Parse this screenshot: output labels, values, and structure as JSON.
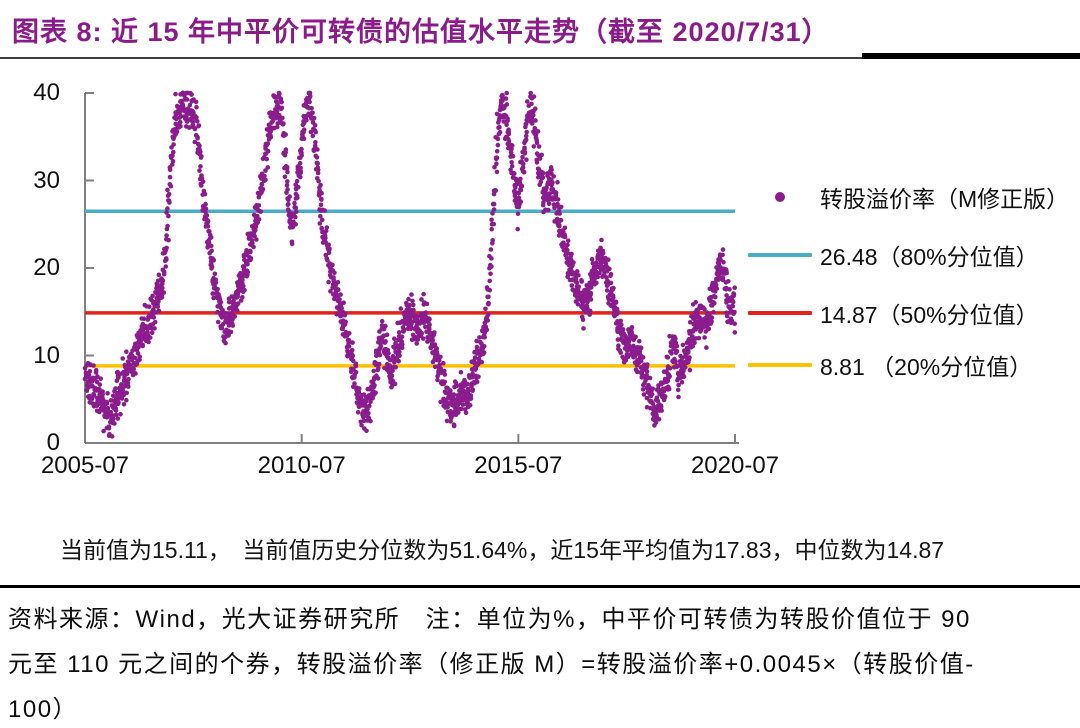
{
  "title": "图表 8: 近 15 年中平价可转债的估值水平走势（截至 2020/7/31）",
  "colors": {
    "title": "#8B1A8B",
    "scatter": "#8B1C8E",
    "p80_line": "#4BACC6",
    "p50_line": "#E2231A",
    "p20_line": "#FFC000",
    "axis": "#808080"
  },
  "legend": {
    "items": [
      {
        "marker": "dot",
        "color": "#8B1C8E",
        "label": "转股溢价率（M修正版）"
      },
      {
        "marker": "line",
        "color": "#4BACC6",
        "label": "26.48（80%分位值）"
      },
      {
        "marker": "line",
        "color": "#E2231A",
        "label": "14.87（50%分位值）"
      },
      {
        "marker": "line",
        "color": "#FFC000",
        "label": "8.81 （20%分位值）"
      }
    ]
  },
  "stats_line": "当前值为15.11，　当前值历史分位数为51.64%，近15年平均值为17.83，中位数为14.87",
  "footer": {
    "lines": [
      "资料来源：Wind，光大证券研究所　注：单位为%，中平价可转债为转股价值位于 90",
      "元至 110 元之间的个券，转股溢价率（修正版 M）=转股溢价率+0.0045×（转股价值-",
      "100）"
    ]
  },
  "chart_data": {
    "type": "scatter",
    "title": "近15年中平价可转债的估值水平走势（截至2020/7/31）",
    "series_name": "转股溢价率（M修正版）",
    "unit": "%",
    "x_axis": {
      "range": [
        2005.5,
        2020.5
      ],
      "tick_labels": [
        "2005-07",
        "2010-07",
        "2015-07",
        "2020-07"
      ],
      "tick_values": [
        2005.5,
        2010.5,
        2015.5,
        2020.5
      ]
    },
    "y_axis": {
      "range": [
        0,
        40
      ],
      "ticks": [
        0,
        10,
        20,
        30,
        40
      ]
    },
    "grid": false,
    "legend_position": "right",
    "reference_lines": [
      {
        "value": 26.48,
        "label": "26.48（80%分位值）",
        "percentile": "80%",
        "color": "#4BACC6"
      },
      {
        "value": 14.87,
        "label": "14.87（50%分位值）",
        "percentile": "50%",
        "color": "#E2231A"
      },
      {
        "value": 8.81,
        "label": "8.81 （20%分位值）",
        "percentile": "20%",
        "color": "#FFC000"
      }
    ],
    "stats": {
      "current": 15.11,
      "current_percentile": "51.64%",
      "mean_15y": 17.83,
      "median": 14.87
    },
    "scatter_color": "#8B1C8E",
    "dots_per_year": 185,
    "jitter_sigma": 1.15,
    "t_jitter": 0.05,
    "points_anchor_path": [
      [
        2005.5,
        7.5
      ],
      [
        2005.62,
        6.8
      ],
      [
        2005.75,
        5.8
      ],
      [
        2005.88,
        4.8
      ],
      [
        2006.0,
        3.8
      ],
      [
        2006.1,
        3.2
      ],
      [
        2006.22,
        5.0
      ],
      [
        2006.35,
        6.5
      ],
      [
        2006.5,
        8.0
      ],
      [
        2006.65,
        10.0
      ],
      [
        2006.8,
        12.0
      ],
      [
        2006.95,
        13.5
      ],
      [
        2007.08,
        15.0
      ],
      [
        2007.18,
        16.5
      ],
      [
        2007.28,
        18.0
      ],
      [
        2007.38,
        24.0
      ],
      [
        2007.5,
        33.0
      ],
      [
        2007.62,
        37.5
      ],
      [
        2007.75,
        39.0
      ],
      [
        2007.9,
        38.0
      ],
      [
        2008.02,
        37.5
      ],
      [
        2008.12,
        33.5
      ],
      [
        2008.25,
        28.0
      ],
      [
        2008.38,
        22.5
      ],
      [
        2008.5,
        18.0
      ],
      [
        2008.62,
        15.0
      ],
      [
        2008.75,
        13.0
      ],
      [
        2008.88,
        14.5
      ],
      [
        2009.0,
        16.5
      ],
      [
        2009.12,
        18.5
      ],
      [
        2009.25,
        21.0
      ],
      [
        2009.38,
        24.0
      ],
      [
        2009.5,
        27.0
      ],
      [
        2009.62,
        31.0
      ],
      [
        2009.75,
        35.0
      ],
      [
        2009.88,
        38.0
      ],
      [
        2010.0,
        39.0
      ],
      [
        2010.1,
        34.0
      ],
      [
        2010.2,
        27.0
      ],
      [
        2010.3,
        24.5
      ],
      [
        2010.42,
        30.0
      ],
      [
        2010.55,
        36.5
      ],
      [
        2010.68,
        39.0
      ],
      [
        2010.8,
        35.0
      ],
      [
        2010.9,
        29.0
      ],
      [
        2011.0,
        24.5
      ],
      [
        2011.1,
        21.5
      ],
      [
        2011.22,
        18.5
      ],
      [
        2011.35,
        16.5
      ],
      [
        2011.48,
        13.5
      ],
      [
        2011.62,
        10.0
      ],
      [
        2011.75,
        6.5
      ],
      [
        2011.88,
        4.0
      ],
      [
        2011.98,
        3.0
      ],
      [
        2012.1,
        5.5
      ],
      [
        2012.22,
        9.0
      ],
      [
        2012.35,
        13.0
      ],
      [
        2012.48,
        9.5
      ],
      [
        2012.58,
        7.5
      ],
      [
        2012.7,
        10.5
      ],
      [
        2012.82,
        13.0
      ],
      [
        2012.95,
        15.0
      ],
      [
        2013.08,
        14.0
      ],
      [
        2013.2,
        12.5
      ],
      [
        2013.32,
        15.0
      ],
      [
        2013.45,
        12.5
      ],
      [
        2013.58,
        10.0
      ],
      [
        2013.7,
        8.0
      ],
      [
        2013.82,
        5.5
      ],
      [
        2013.95,
        3.5
      ],
      [
        2014.08,
        5.0
      ],
      [
        2014.2,
        6.0
      ],
      [
        2014.32,
        5.0
      ],
      [
        2014.45,
        7.5
      ],
      [
        2014.58,
        9.5
      ],
      [
        2014.7,
        11.5
      ],
      [
        2014.82,
        17.0
      ],
      [
        2014.92,
        26.0
      ],
      [
        2015.02,
        35.0
      ],
      [
        2015.12,
        39.0
      ],
      [
        2015.25,
        36.5
      ],
      [
        2015.38,
        31.0
      ],
      [
        2015.5,
        27.5
      ],
      [
        2015.62,
        33.0
      ],
      [
        2015.75,
        38.0
      ],
      [
        2015.88,
        36.5
      ],
      [
        2016.0,
        31.0
      ],
      [
        2016.12,
        27.5
      ],
      [
        2016.25,
        30.0
      ],
      [
        2016.38,
        27.0
      ],
      [
        2016.5,
        24.0
      ],
      [
        2016.62,
        21.5
      ],
      [
        2016.75,
        19.5
      ],
      [
        2016.88,
        17.0
      ],
      [
        2017.0,
        15.5
      ],
      [
        2017.12,
        17.0
      ],
      [
        2017.25,
        19.0
      ],
      [
        2017.38,
        21.0
      ],
      [
        2017.5,
        20.5
      ],
      [
        2017.62,
        18.0
      ],
      [
        2017.75,
        14.5
      ],
      [
        2017.88,
        12.0
      ],
      [
        2018.0,
        10.5
      ],
      [
        2018.12,
        12.0
      ],
      [
        2018.25,
        10.0
      ],
      [
        2018.38,
        8.0
      ],
      [
        2018.5,
        6.5
      ],
      [
        2018.62,
        3.8
      ],
      [
        2018.75,
        4.5
      ],
      [
        2018.88,
        6.5
      ],
      [
        2019.0,
        9.5
      ],
      [
        2019.1,
        11.5
      ],
      [
        2019.22,
        7.5
      ],
      [
        2019.35,
        9.5
      ],
      [
        2019.48,
        12.0
      ],
      [
        2019.6,
        14.0
      ],
      [
        2019.72,
        14.5
      ],
      [
        2019.85,
        13.5
      ],
      [
        2019.95,
        15.5
      ],
      [
        2020.05,
        18.5
      ],
      [
        2020.15,
        21.0
      ],
      [
        2020.28,
        18.0
      ],
      [
        2020.4,
        15.5
      ],
      [
        2020.5,
        15.11
      ]
    ]
  }
}
